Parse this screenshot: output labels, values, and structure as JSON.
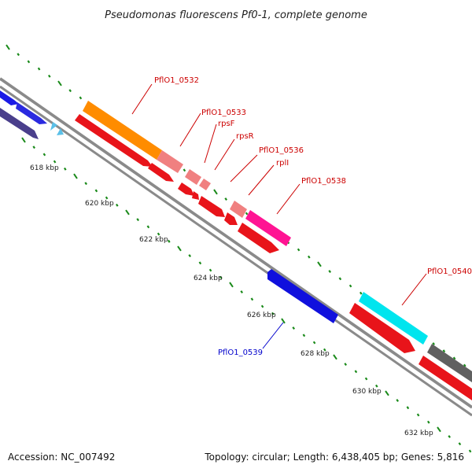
{
  "title": "Pseudomonas fluorescens Pf0-1, complete genome",
  "footer": {
    "accession": "Accession: NC_007492",
    "summary": "Topology: circular; Length: 6,438,405 bp; Genes: 5,816"
  },
  "colors": {
    "backbone": "#8a8a8a",
    "forward_tick": "#1a8a1a",
    "red_gene": "#e8141a",
    "label_red": "#cc0000",
    "label_blue": "#0000cc"
  },
  "scale": {
    "unit": "kbp",
    "ticks": [
      "618 kbp",
      "620 kbp",
      "622 kbp",
      "624 kbp",
      "626 kbp",
      "628 kbp",
      "630 kbp",
      "632 kbp"
    ]
  },
  "genes": [
    {
      "id": "g1",
      "label": "",
      "color": "#1a1ae6",
      "strand": "+",
      "track": "outer2"
    },
    {
      "id": "g2",
      "label": "",
      "color": "#4a3f8c",
      "strand": "+",
      "track": "outer1"
    },
    {
      "id": "g3",
      "label": "",
      "color": "#2a2ae0",
      "strand": "+",
      "track": "outer1"
    },
    {
      "id": "g4",
      "label": "",
      "color": "#5bc0e8",
      "strand": "-",
      "track": "outer1"
    },
    {
      "id": "g5",
      "label": "PflO1_0532",
      "color": "#ff8c00",
      "strand": "+",
      "track": "outer2",
      "label_color": "#cc0000"
    },
    {
      "id": "g6",
      "label": "",
      "color": "#f08080",
      "strand": "+",
      "track": "outer2"
    },
    {
      "id": "g7",
      "label": "PflO1_0533",
      "color": "#f08080",
      "strand": "+",
      "track": "outer1",
      "label_color": "#cc0000"
    },
    {
      "id": "g8",
      "label": "rpsF",
      "color": "#f08080",
      "strand": "+",
      "track": "outer1",
      "label_color": "#cc0000"
    },
    {
      "id": "g9",
      "label": "rpsR",
      "color": "#f08080",
      "strand": "+",
      "track": "outer1",
      "label_color": "#cc0000"
    },
    {
      "id": "g10",
      "label": "PflO1_0536",
      "color": "#f08080",
      "strand": "+",
      "track": "outer1",
      "label_color": "#cc0000"
    },
    {
      "id": "g11",
      "label": "rplI",
      "color": "#ff1493",
      "strand": "+",
      "track": "outer1",
      "label_color": "#cc0000"
    },
    {
      "id": "g12",
      "label": "PflO1_0538",
      "color": "#e8141a",
      "strand": "+",
      "track": "outer1",
      "label_color": "#cc0000"
    },
    {
      "id": "g13",
      "label": "PflO1_0539",
      "color": "#1010dd",
      "strand": "-",
      "track": "inner",
      "label_color": "#0000cc"
    },
    {
      "id": "g14",
      "label": "PflO1_0540",
      "color": "#00e5ee",
      "strand": "+",
      "track": "outer2",
      "label_color": "#cc0000"
    },
    {
      "id": "g15",
      "label": "",
      "color": "#606060",
      "strand": "+",
      "track": "outer2"
    }
  ]
}
